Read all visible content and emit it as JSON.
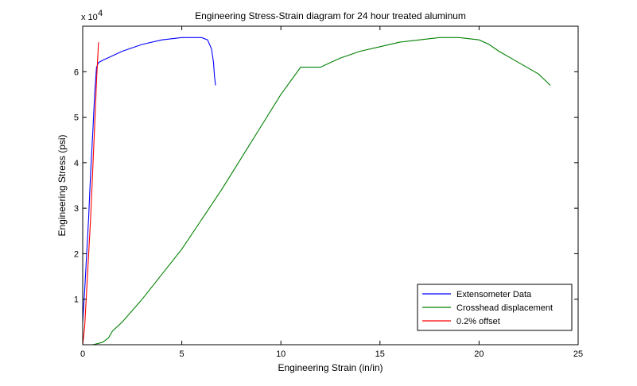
{
  "chart_data": {
    "type": "line",
    "title": "Engineering Stress-Strain diagram for 24 hour treated aluminum",
    "xlabel": "Engineering Strain (in/in)",
    "ylabel": "Engineering Stress (psi)",
    "y_multiplier_label": "x 10",
    "y_multiplier_exponent": "4",
    "xlim": [
      0,
      25
    ],
    "ylim": [
      0,
      70000
    ],
    "x_ticks": [
      0,
      5,
      10,
      15,
      20,
      25
    ],
    "x_tick_labels": [
      "0",
      "5",
      "10",
      "15",
      "20",
      "25"
    ],
    "y_ticks": [
      10000,
      20000,
      30000,
      40000,
      50000,
      60000
    ],
    "y_tick_labels": [
      "1",
      "2",
      "3",
      "4",
      "5",
      "6"
    ],
    "grid": false,
    "legend_position": "bottom-right",
    "series": [
      {
        "name": "Extensometer Data",
        "color": "#0000ff",
        "x": [
          0,
          0.1,
          0.2,
          0.3,
          0.4,
          0.5,
          0.6,
          0.7,
          0.8,
          1.0,
          1.5,
          2.0,
          3.0,
          4.0,
          5.0,
          5.5,
          6.0,
          6.3,
          6.5,
          6.6,
          6.65,
          6.7
        ],
        "y": [
          5000,
          12000,
          20000,
          28000,
          38000,
          46000,
          55000,
          61000,
          62000,
          62500,
          63500,
          64500,
          66000,
          67000,
          67500,
          67500,
          67500,
          67000,
          65000,
          62000,
          59000,
          57000
        ]
      },
      {
        "name": "Crosshead displacement",
        "color": "#008000",
        "x": [
          0.5,
          1.0,
          1.3,
          1.5,
          2.0,
          3.0,
          4.0,
          5.0,
          6.0,
          7.0,
          8.0,
          9.0,
          10.0,
          11.0,
          12.0,
          12.5,
          13.0,
          14.0,
          15.0,
          16.0,
          17.0,
          18.0,
          19.0,
          20.0,
          20.5,
          21.0,
          22.0,
          23.0,
          23.6
        ],
        "y": [
          0,
          500,
          1500,
          3000,
          5000,
          10000,
          15500,
          21000,
          27500,
          34000,
          41000,
          48000,
          55000,
          61000,
          61000,
          62000,
          63000,
          64500,
          65500,
          66500,
          67000,
          67500,
          67500,
          67000,
          66000,
          64500,
          62000,
          59500,
          57000
        ]
      },
      {
        "name": "0.2% offset",
        "color": "#ff0000",
        "x": [
          0.0,
          0.1,
          0.2,
          0.3,
          0.4,
          0.5,
          0.6,
          0.7,
          0.8
        ],
        "y": [
          0,
          4000,
          12000,
          20000,
          28000,
          38000,
          48000,
          58000,
          66500
        ]
      }
    ]
  }
}
